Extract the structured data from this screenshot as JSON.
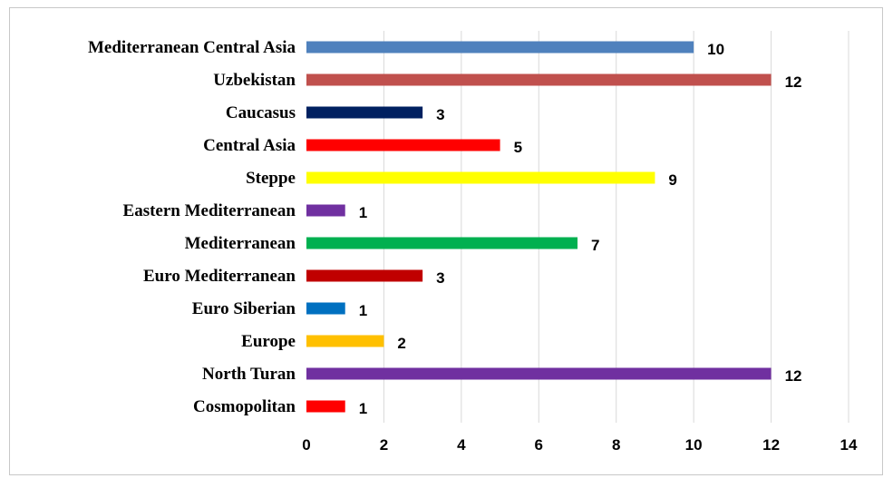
{
  "chart_data": {
    "type": "bar",
    "orientation": "horizontal",
    "title": "",
    "xlabel": "",
    "ylabel": "",
    "xlim": [
      0,
      14
    ],
    "ticks": [
      0,
      2,
      4,
      6,
      8,
      10,
      12,
      14
    ],
    "grid": "vertical",
    "legend": "none",
    "categories": [
      "Mediterranean Central Asia",
      "Uzbekistan",
      "Caucasus",
      "Central Asia",
      "Steppe",
      "Eastern Mediterranean",
      "Mediterranean",
      "Euro Mediterranean",
      "Euro Siberian",
      "Europe",
      "North Turan",
      "Cosmopolitan"
    ],
    "values": [
      10,
      12,
      3,
      5,
      9,
      1,
      7,
      3,
      1,
      2,
      12,
      1
    ],
    "colors": [
      "#4f81bd",
      "#c0504d",
      "#002060",
      "#ff0000",
      "#ffff00",
      "#7030a0",
      "#00b050",
      "#c00000",
      "#0070c0",
      "#ffc000",
      "#7030a0",
      "#ff0000"
    ]
  }
}
